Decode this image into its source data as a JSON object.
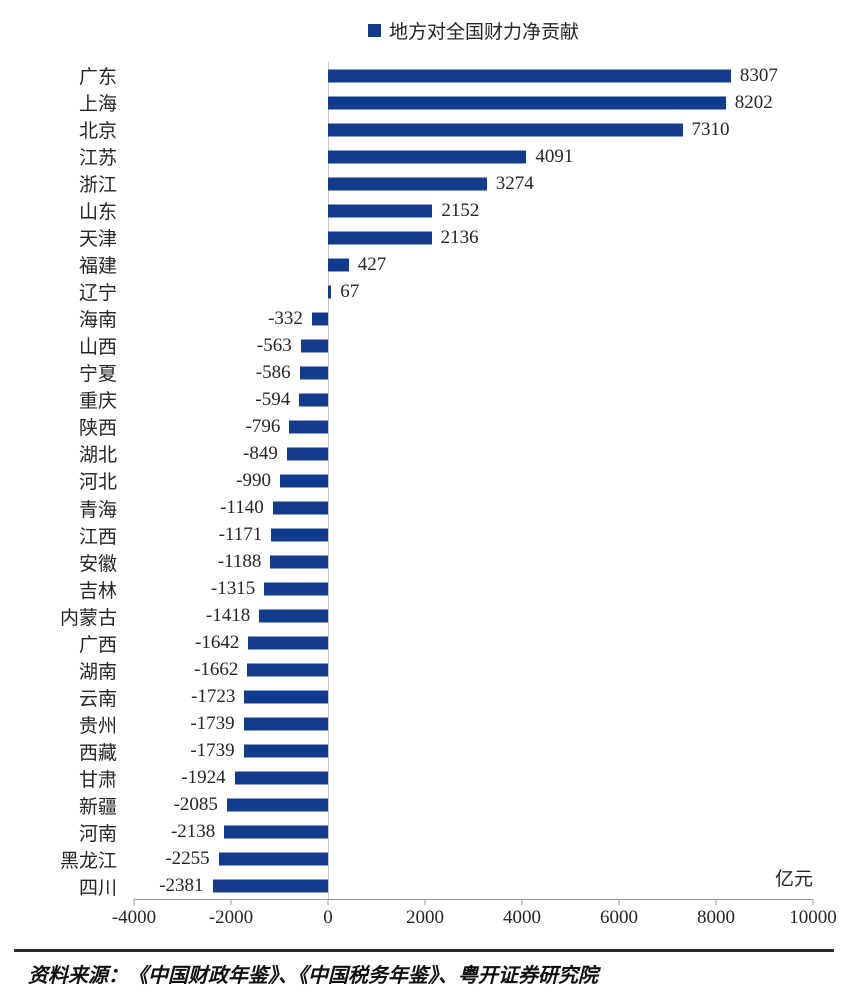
{
  "legend": {
    "label": "地方对全国财力净贡献",
    "marker_color": "#123A8D"
  },
  "axis": {
    "unit_label": "亿元"
  },
  "source_note": "资料来源：《中国财政年鉴》、《中国税务年鉴》、粤开证券研究院",
  "colors": {
    "bar": "#123A8D",
    "axis_line": "#9a9a9a",
    "zero_line": "#c9c9c9",
    "text": "#262626"
  },
  "chart_data": {
    "type": "bar",
    "orientation": "horizontal",
    "title": "地方对全国财力净贡献",
    "unit": "亿元",
    "categories": [
      "广东",
      "上海",
      "北京",
      "江苏",
      "浙江",
      "山东",
      "天津",
      "福建",
      "辽宁",
      "海南",
      "山西",
      "宁夏",
      "重庆",
      "陕西",
      "湖北",
      "河北",
      "青海",
      "江西",
      "安徽",
      "吉林",
      "内蒙古",
      "广西",
      "湖南",
      "云南",
      "贵州",
      "西藏",
      "甘肃",
      "新疆",
      "河南",
      "黑龙江",
      "四川"
    ],
    "values": [
      8307,
      8202,
      7310,
      4091,
      3274,
      2152,
      2136,
      427,
      67,
      -332,
      -563,
      -586,
      -594,
      -796,
      -849,
      -990,
      -1140,
      -1171,
      -1188,
      -1315,
      -1418,
      -1642,
      -1662,
      -1723,
      -1739,
      -1739,
      -1924,
      -2085,
      -2138,
      -2255,
      -2381
    ],
    "xlim": [
      -4000,
      10000
    ],
    "x_ticks": [
      -4000,
      -2000,
      0,
      2000,
      4000,
      6000,
      8000,
      10000
    ],
    "bar_color": "#123A8D",
    "grid": false,
    "legend_position": "top-center",
    "value_labels": true,
    "xlabel": "",
    "ylabel": ""
  }
}
